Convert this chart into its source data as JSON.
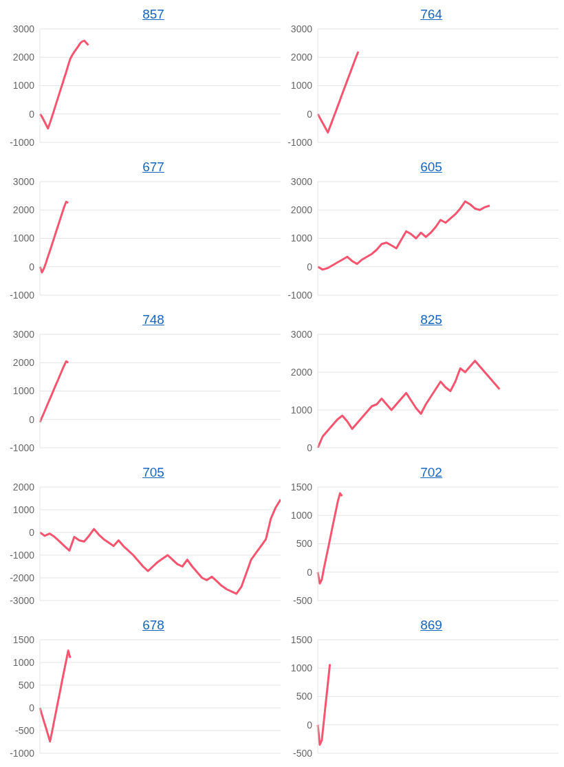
{
  "chart_data": [
    {
      "type": "line",
      "title": "857",
      "categories": [
        null,
        null,
        null,
        null,
        null,
        null,
        null,
        null,
        null,
        null,
        null,
        null,
        null,
        null,
        null,
        null,
        null,
        null,
        null,
        null,
        null,
        null,
        null,
        null,
        null,
        null,
        null,
        null,
        null,
        null,
        null,
        null,
        null,
        null,
        null,
        null,
        null,
        null,
        null,
        null,
        null,
        null,
        null,
        null,
        null,
        null,
        null,
        null,
        null,
        null,
        null,
        null,
        null,
        null,
        null,
        null,
        null,
        null,
        null,
        null,
        null,
        null,
        null,
        null,
        null,
        null,
        null,
        null,
        null,
        null,
        null,
        null,
        null,
        null,
        null,
        null,
        null,
        null,
        null,
        null,
        null,
        null,
        null,
        null,
        null,
        null,
        null,
        null,
        null,
        null,
        null,
        null,
        null,
        null,
        null,
        null,
        null,
        null,
        null,
        null,
        null,
        null,
        null,
        null,
        null,
        null,
        null,
        null,
        null,
        null,
        null,
        null,
        null,
        null,
        null,
        null,
        null,
        null,
        null,
        null
      ],
      "values": [
        0,
        -90,
        -230,
        -370,
        -510,
        -310,
        -90,
        130,
        360,
        580,
        810,
        1030,
        1260,
        1480,
        1720,
        1940,
        2080,
        2190,
        2290,
        2390,
        2500,
        2560,
        2580,
        2500,
        2430,
        null,
        null,
        null,
        null,
        null,
        null,
        null,
        null,
        null,
        null,
        null,
        null,
        null,
        null,
        null,
        null,
        null,
        null,
        null,
        null,
        null,
        null,
        null,
        null,
        null,
        null,
        null,
        null,
        null,
        null,
        null,
        null,
        null,
        null,
        null,
        null,
        null,
        null,
        null,
        null,
        null,
        null,
        null,
        null,
        null,
        null,
        null,
        null,
        null,
        null,
        null,
        null,
        null,
        null,
        null,
        null,
        null,
        null,
        null,
        null,
        null,
        null,
        null,
        null,
        null,
        null,
        null,
        null,
        null,
        null,
        null,
        null,
        null,
        null,
        null,
        null,
        null,
        null,
        null,
        null,
        null,
        null,
        null,
        null,
        null,
        null,
        null,
        null,
        null,
        null,
        null,
        null,
        null,
        null,
        null
      ],
      "color": "#f7546f",
      "ylim": [
        -1000,
        3000
      ],
      "yticks": [
        -1000,
        0,
        1000,
        2000,
        3000
      ],
      "grid": "y",
      "tick_labels": "y"
    },
    {
      "type": "line",
      "title": "764",
      "categories": [
        null,
        null,
        null,
        null,
        null,
        null,
        null,
        null,
        null,
        null,
        null,
        null,
        null,
        null,
        null,
        null,
        null,
        null,
        null,
        null,
        null,
        null,
        null,
        null,
        null,
        null,
        null,
        null,
        null,
        null,
        null,
        null,
        null,
        null,
        null,
        null,
        null,
        null,
        null,
        null,
        null,
        null,
        null,
        null,
        null,
        null,
        null,
        null,
        null,
        null,
        null,
        null,
        null,
        null,
        null,
        null,
        null,
        null,
        null,
        null,
        null,
        null,
        null,
        null,
        null,
        null,
        null,
        null,
        null,
        null,
        null,
        null,
        null,
        null,
        null,
        null,
        null,
        null,
        null,
        null,
        null,
        null,
        null,
        null,
        null,
        null,
        null,
        null,
        null,
        null,
        null,
        null,
        null,
        null,
        null,
        null,
        null,
        null,
        null,
        null,
        null,
        null,
        null,
        null,
        null,
        null,
        null,
        null,
        null,
        null,
        null,
        null,
        null,
        null,
        null,
        null,
        null,
        null,
        null,
        null
      ],
      "values": [
        0,
        -130,
        -260,
        -390,
        -520,
        -650,
        -460,
        -270,
        -80,
        110,
        300,
        490,
        690,
        880,
        1070,
        1260,
        1450,
        1640,
        1830,
        2020,
        2200,
        null,
        null,
        null,
        null,
        null,
        null,
        null,
        null,
        null,
        null,
        null,
        null,
        null,
        null,
        null,
        null,
        null,
        null,
        null,
        null,
        null,
        null,
        null,
        null,
        null,
        null,
        null,
        null,
        null,
        null,
        null,
        null,
        null,
        null,
        null,
        null,
        null,
        null,
        null,
        null,
        null,
        null,
        null,
        null,
        null,
        null,
        null,
        null,
        null,
        null,
        null,
        null,
        null,
        null,
        null,
        null,
        null,
        null,
        null,
        null,
        null,
        null,
        null,
        null,
        null,
        null,
        null,
        null,
        null,
        null,
        null,
        null,
        null,
        null,
        null,
        null,
        null,
        null,
        null,
        null,
        null,
        null,
        null,
        null,
        null,
        null,
        null,
        null,
        null,
        null,
        null,
        null,
        null,
        null,
        null,
        null,
        null,
        null,
        null
      ],
      "color": "#f7546f",
      "ylim": [
        -1000,
        3000
      ],
      "yticks": [
        -1000,
        0,
        1000,
        2000,
        3000
      ],
      "grid": "y",
      "tick_labels": "y"
    },
    {
      "type": "line",
      "title": "677",
      "categories": [
        null,
        null,
        null,
        null,
        null,
        null,
        null,
        null,
        null,
        null,
        null,
        null,
        null,
        null,
        null,
        null,
        null,
        null,
        null,
        null,
        null,
        null,
        null,
        null,
        null,
        null,
        null,
        null,
        null,
        null,
        null,
        null,
        null,
        null,
        null,
        null,
        null,
        null,
        null,
        null,
        null,
        null,
        null,
        null,
        null,
        null,
        null,
        null,
        null,
        null,
        null,
        null,
        null,
        null,
        null,
        null,
        null,
        null,
        null,
        null,
        null,
        null,
        null,
        null,
        null,
        null,
        null,
        null,
        null,
        null,
        null,
        null,
        null,
        null,
        null,
        null,
        null,
        null,
        null,
        null,
        null,
        null,
        null,
        null,
        null,
        null,
        null,
        null,
        null,
        null,
        null,
        null,
        null,
        null,
        null,
        null,
        null,
        null,
        null,
        null,
        null,
        null,
        null,
        null,
        null,
        null,
        null,
        null,
        null,
        null,
        null,
        null,
        null,
        null,
        null,
        null,
        null,
        null,
        null,
        null
      ],
      "values": [
        0,
        -200,
        -60,
        140,
        360,
        570,
        790,
        1010,
        1230,
        1450,
        1670,
        1890,
        2110,
        2290,
        2250,
        null,
        null,
        null,
        null,
        null,
        null,
        null,
        null,
        null,
        null,
        null,
        null,
        null,
        null,
        null,
        null,
        null,
        null,
        null,
        null,
        null,
        null,
        null,
        null,
        null,
        null,
        null,
        null,
        null,
        null,
        null,
        null,
        null,
        null,
        null,
        null,
        null,
        null,
        null,
        null,
        null,
        null,
        null,
        null,
        null,
        null,
        null,
        null,
        null,
        null,
        null,
        null,
        null,
        null,
        null,
        null,
        null,
        null,
        null,
        null,
        null,
        null,
        null,
        null,
        null,
        null,
        null,
        null,
        null,
        null,
        null,
        null,
        null,
        null,
        null,
        null,
        null,
        null,
        null,
        null,
        null,
        null,
        null,
        null,
        null,
        null,
        null,
        null,
        null,
        null,
        null,
        null,
        null,
        null,
        null,
        null,
        null,
        null,
        null,
        null,
        null,
        null,
        null,
        null,
        null
      ],
      "color": "#f7546f",
      "ylim": [
        -1000,
        3000
      ],
      "yticks": [
        -1000,
        0,
        1000,
        2000,
        3000
      ],
      "grid": "y",
      "tick_labels": "y"
    },
    {
      "type": "line",
      "title": "605",
      "categories": [
        null,
        null,
        null,
        null,
        null,
        null,
        null,
        null,
        null,
        null,
        null,
        null,
        null,
        null,
        null,
        null,
        null,
        null,
        null,
        null,
        null,
        null,
        null,
        null,
        null,
        null,
        null,
        null,
        null,
        null,
        null,
        null,
        null,
        null,
        null,
        null,
        null,
        null,
        null,
        null,
        null,
        null,
        null,
        null,
        null,
        null,
        null,
        null,
        null,
        null
      ],
      "values": [
        0,
        -100,
        -50,
        50,
        150,
        250,
        350,
        200,
        100,
        250,
        350,
        450,
        600,
        800,
        850,
        750,
        650,
        950,
        1250,
        1150,
        1000,
        1200,
        1050,
        1200,
        1400,
        1650,
        1550,
        1700,
        1850,
        2050,
        2300,
        2200,
        2050,
        2000,
        2100,
        2150,
        null,
        null,
        null,
        null,
        null,
        null,
        null,
        null,
        null,
        null,
        null,
        null,
        null,
        null
      ],
      "color": "#f7546f",
      "ylim": [
        -1000,
        3000
      ],
      "yticks": [
        -1000,
        0,
        1000,
        2000,
        3000
      ],
      "grid": "y",
      "tick_labels": "y"
    },
    {
      "type": "line",
      "title": "748",
      "categories": [
        null,
        null,
        null,
        null,
        null,
        null,
        null,
        null,
        null,
        null,
        null,
        null,
        null,
        null,
        null,
        null,
        null,
        null,
        null,
        null,
        null,
        null,
        null,
        null,
        null,
        null,
        null,
        null,
        null,
        null,
        null,
        null,
        null,
        null,
        null,
        null,
        null,
        null,
        null,
        null,
        null,
        null,
        null,
        null,
        null,
        null,
        null,
        null,
        null,
        null,
        null,
        null,
        null,
        null,
        null,
        null,
        null,
        null,
        null,
        null,
        null,
        null,
        null,
        null,
        null,
        null,
        null,
        null,
        null,
        null,
        null,
        null,
        null,
        null,
        null,
        null,
        null,
        null,
        null,
        null,
        null,
        null,
        null,
        null,
        null,
        null,
        null,
        null,
        null,
        null,
        null,
        null,
        null,
        null,
        null,
        null,
        null,
        null,
        null,
        null,
        null,
        null,
        null,
        null,
        null,
        null,
        null,
        null,
        null,
        null,
        null,
        null,
        null,
        null,
        null,
        null,
        null,
        null,
        null,
        null
      ],
      "values": [
        -100,
        70,
        230,
        400,
        570,
        730,
        900,
        1070,
        1240,
        1400,
        1570,
        1740,
        1900,
        2050,
        2000,
        null,
        null,
        null,
        null,
        null,
        null,
        null,
        null,
        null,
        null,
        null,
        null,
        null,
        null,
        null,
        null,
        null,
        null,
        null,
        null,
        null,
        null,
        null,
        null,
        null,
        null,
        null,
        null,
        null,
        null,
        null,
        null,
        null,
        null,
        null,
        null,
        null,
        null,
        null,
        null,
        null,
        null,
        null,
        null,
        null,
        null,
        null,
        null,
        null,
        null,
        null,
        null,
        null,
        null,
        null,
        null,
        null,
        null,
        null,
        null,
        null,
        null,
        null,
        null,
        null,
        null,
        null,
        null,
        null,
        null,
        null,
        null,
        null,
        null,
        null,
        null,
        null,
        null,
        null,
        null,
        null,
        null,
        null,
        null,
        null,
        null,
        null,
        null,
        null,
        null,
        null,
        null,
        null,
        null,
        null,
        null,
        null,
        null,
        null,
        null,
        null,
        null,
        null,
        null,
        null
      ],
      "color": "#f7546f",
      "ylim": [
        -1000,
        3000
      ],
      "yticks": [
        -1000,
        0,
        1000,
        2000,
        3000
      ],
      "grid": "y",
      "tick_labels": "y"
    },
    {
      "type": "line",
      "title": "825",
      "categories": [
        null,
        null,
        null,
        null,
        null,
        null,
        null,
        null,
        null,
        null,
        null,
        null,
        null,
        null,
        null,
        null,
        null,
        null,
        null,
        null,
        null,
        null,
        null,
        null,
        null,
        null,
        null,
        null,
        null,
        null,
        null,
        null,
        null,
        null,
        null,
        null,
        null,
        null,
        null,
        null,
        null,
        null,
        null,
        null,
        null,
        null,
        null,
        null,
        null,
        null
      ],
      "values": [
        0,
        300,
        450,
        600,
        750,
        850,
        700,
        500,
        650,
        800,
        950,
        1100,
        1150,
        1300,
        1150,
        1000,
        1150,
        1300,
        1450,
        1250,
        1050,
        900,
        1150,
        1350,
        1550,
        1750,
        1600,
        1500,
        1750,
        2100,
        2000,
        2150,
        2300,
        2150,
        2000,
        1850,
        1700,
        1550,
        null,
        null,
        null,
        null,
        null,
        null,
        null,
        null,
        null,
        null,
        null,
        null
      ],
      "color": "#f7546f",
      "ylim": [
        0,
        3000
      ],
      "yticks": [
        0,
        1000,
        2000,
        3000
      ],
      "grid": "y",
      "tick_labels": "y"
    },
    {
      "type": "line",
      "title": "705",
      "categories": [
        null,
        null,
        null,
        null,
        null,
        null,
        null,
        null,
        null,
        null,
        null,
        null,
        null,
        null,
        null,
        null,
        null,
        null,
        null,
        null,
        null,
        null,
        null,
        null,
        null,
        null,
        null,
        null,
        null,
        null,
        null,
        null,
        null,
        null,
        null,
        null,
        null,
        null,
        null,
        null,
        null,
        null,
        null,
        null,
        null,
        null,
        null,
        null,
        null,
        null
      ],
      "values": [
        0,
        -150,
        -50,
        -200,
        -400,
        -600,
        -800,
        -200,
        -350,
        -400,
        -150,
        150,
        -100,
        -300,
        -450,
        -600,
        -350,
        -600,
        -800,
        -1000,
        -1250,
        -1500,
        -1700,
        -1500,
        -1300,
        -1150,
        -1000,
        -1200,
        -1400,
        -1500,
        -1200,
        -1500,
        -1750,
        -2000,
        -2100,
        -1950,
        -2150,
        -2350,
        -2500,
        -2600,
        -2700,
        -2400,
        -1800,
        -1200,
        -900,
        -600,
        -300,
        600,
        1100,
        1450
      ],
      "color": "#f7546f",
      "ylim": [
        -3000,
        2000
      ],
      "yticks": [
        -3000,
        -2000,
        -1000,
        0,
        1000,
        2000
      ],
      "grid": "y",
      "tick_labels": "y"
    },
    {
      "type": "line",
      "title": "702",
      "categories": [
        null,
        null,
        null,
        null,
        null,
        null,
        null,
        null,
        null,
        null,
        null,
        null,
        null,
        null,
        null,
        null,
        null,
        null,
        null,
        null,
        null,
        null,
        null,
        null,
        null,
        null,
        null,
        null,
        null,
        null,
        null,
        null,
        null,
        null,
        null,
        null,
        null,
        null,
        null,
        null,
        null,
        null,
        null,
        null,
        null,
        null,
        null,
        null,
        null,
        null,
        null,
        null,
        null,
        null,
        null,
        null,
        null,
        null,
        null,
        null,
        null,
        null,
        null,
        null,
        null,
        null,
        null,
        null,
        null,
        null,
        null,
        null,
        null,
        null,
        null,
        null,
        null,
        null,
        null,
        null,
        null,
        null,
        null,
        null,
        null,
        null,
        null,
        null,
        null,
        null,
        null,
        null,
        null,
        null,
        null,
        null,
        null,
        null,
        null,
        null,
        null,
        null,
        null,
        null,
        null,
        null,
        null,
        null,
        null,
        null,
        null,
        null,
        null,
        null,
        null,
        null,
        null,
        null,
        null,
        null
      ],
      "values": [
        0,
        -200,
        -130,
        60,
        230,
        400,
        570,
        750,
        920,
        1090,
        1260,
        1390,
        1340,
        null,
        null,
        null,
        null,
        null,
        null,
        null,
        null,
        null,
        null,
        null,
        null,
        null,
        null,
        null,
        null,
        null,
        null,
        null,
        null,
        null,
        null,
        null,
        null,
        null,
        null,
        null,
        null,
        null,
        null,
        null,
        null,
        null,
        null,
        null,
        null,
        null,
        null,
        null,
        null,
        null,
        null,
        null,
        null,
        null,
        null,
        null,
        null,
        null,
        null,
        null,
        null,
        null,
        null,
        null,
        null,
        null,
        null,
        null,
        null,
        null,
        null,
        null,
        null,
        null,
        null,
        null,
        null,
        null,
        null,
        null,
        null,
        null,
        null,
        null,
        null,
        null,
        null,
        null,
        null,
        null,
        null,
        null,
        null,
        null,
        null,
        null,
        null,
        null,
        null,
        null,
        null,
        null,
        null,
        null,
        null,
        null,
        null,
        null,
        null,
        null,
        null,
        null,
        null,
        null,
        null,
        null
      ],
      "color": "#f7546f",
      "ylim": [
        -500,
        1500
      ],
      "yticks": [
        -500,
        0,
        500,
        1000,
        1500
      ],
      "grid": "y",
      "tick_labels": "y"
    },
    {
      "type": "line",
      "title": "678",
      "categories": [
        null,
        null,
        null,
        null,
        null,
        null,
        null,
        null,
        null,
        null,
        null,
        null,
        null,
        null,
        null,
        null,
        null,
        null,
        null,
        null,
        null,
        null,
        null,
        null,
        null,
        null,
        null,
        null,
        null,
        null,
        null,
        null,
        null,
        null,
        null,
        null,
        null,
        null,
        null,
        null,
        null,
        null,
        null,
        null,
        null,
        null,
        null,
        null,
        null,
        null,
        null,
        null,
        null,
        null,
        null,
        null,
        null,
        null,
        null,
        null,
        null,
        null,
        null,
        null,
        null,
        null,
        null,
        null,
        null,
        null,
        null,
        null,
        null,
        null,
        null,
        null,
        null,
        null,
        null,
        null,
        null,
        null,
        null,
        null,
        null,
        null,
        null,
        null,
        null,
        null,
        null,
        null,
        null,
        null,
        null,
        null,
        null,
        null,
        null,
        null,
        null,
        null,
        null,
        null,
        null,
        null,
        null,
        null,
        null,
        null,
        null,
        null,
        null,
        null,
        null,
        null,
        null,
        null,
        null,
        null
      ],
      "values": [
        0,
        -150,
        -300,
        -440,
        -590,
        -740,
        -530,
        -300,
        -80,
        150,
        370,
        600,
        820,
        1040,
        1260,
        1100,
        null,
        null,
        null,
        null,
        null,
        null,
        null,
        null,
        null,
        null,
        null,
        null,
        null,
        null,
        null,
        null,
        null,
        null,
        null,
        null,
        null,
        null,
        null,
        null,
        null,
        null,
        null,
        null,
        null,
        null,
        null,
        null,
        null,
        null,
        null,
        null,
        null,
        null,
        null,
        null,
        null,
        null,
        null,
        null,
        null,
        null,
        null,
        null,
        null,
        null,
        null,
        null,
        null,
        null,
        null,
        null,
        null,
        null,
        null,
        null,
        null,
        null,
        null,
        null,
        null,
        null,
        null,
        null,
        null,
        null,
        null,
        null,
        null,
        null,
        null,
        null,
        null,
        null,
        null,
        null,
        null,
        null,
        null,
        null,
        null,
        null,
        null,
        null,
        null,
        null,
        null,
        null,
        null,
        null,
        null,
        null,
        null,
        null,
        null,
        null,
        null,
        null,
        null,
        null
      ],
      "color": "#f7546f",
      "ylim": [
        -1000,
        1500
      ],
      "yticks": [
        -1000,
        -500,
        0,
        500,
        1000,
        1500
      ],
      "grid": "y",
      "tick_labels": "y"
    },
    {
      "type": "line",
      "title": "869",
      "categories": [
        null,
        null,
        null,
        null,
        null,
        null,
        null,
        null,
        null,
        null,
        null,
        null,
        null,
        null,
        null,
        null,
        null,
        null,
        null,
        null,
        null,
        null,
        null,
        null,
        null,
        null,
        null,
        null,
        null,
        null,
        null,
        null,
        null,
        null,
        null,
        null,
        null,
        null,
        null,
        null,
        null,
        null,
        null,
        null,
        null,
        null,
        null,
        null,
        null,
        null,
        null,
        null,
        null,
        null,
        null,
        null,
        null,
        null,
        null,
        null,
        null,
        null,
        null,
        null,
        null,
        null,
        null,
        null,
        null,
        null,
        null,
        null,
        null,
        null,
        null,
        null,
        null,
        null,
        null,
        null,
        null,
        null,
        null,
        null,
        null,
        null,
        null,
        null,
        null,
        null,
        null,
        null,
        null,
        null,
        null,
        null,
        null,
        null,
        null,
        null,
        null,
        null,
        null,
        null,
        null,
        null,
        null,
        null,
        null,
        null,
        null,
        null,
        null,
        null,
        null,
        null,
        null,
        null,
        null,
        null
      ],
      "values": [
        0,
        -350,
        -270,
        60,
        400,
        730,
        1070,
        null,
        null,
        null,
        null,
        null,
        null,
        null,
        null,
        null,
        null,
        null,
        null,
        null,
        null,
        null,
        null,
        null,
        null,
        null,
        null,
        null,
        null,
        null,
        null,
        null,
        null,
        null,
        null,
        null,
        null,
        null,
        null,
        null,
        null,
        null,
        null,
        null,
        null,
        null,
        null,
        null,
        null,
        null,
        null,
        null,
        null,
        null,
        null,
        null,
        null,
        null,
        null,
        null,
        null,
        null,
        null,
        null,
        null,
        null,
        null,
        null,
        null,
        null,
        null,
        null,
        null,
        null,
        null,
        null,
        null,
        null,
        null,
        null,
        null,
        null,
        null,
        null,
        null,
        null,
        null,
        null,
        null,
        null,
        null,
        null,
        null,
        null,
        null,
        null,
        null,
        null,
        null,
        null,
        null,
        null,
        null,
        null,
        null,
        null,
        null,
        null,
        null,
        null,
        null,
        null,
        null,
        null,
        null,
        null,
        null,
        null,
        null,
        null
      ],
      "color": "#f7546f",
      "ylim": [
        -500,
        1500
      ],
      "yticks": [
        -500,
        0,
        500,
        1000,
        1500
      ],
      "grid": "y",
      "tick_labels": "y"
    }
  ]
}
